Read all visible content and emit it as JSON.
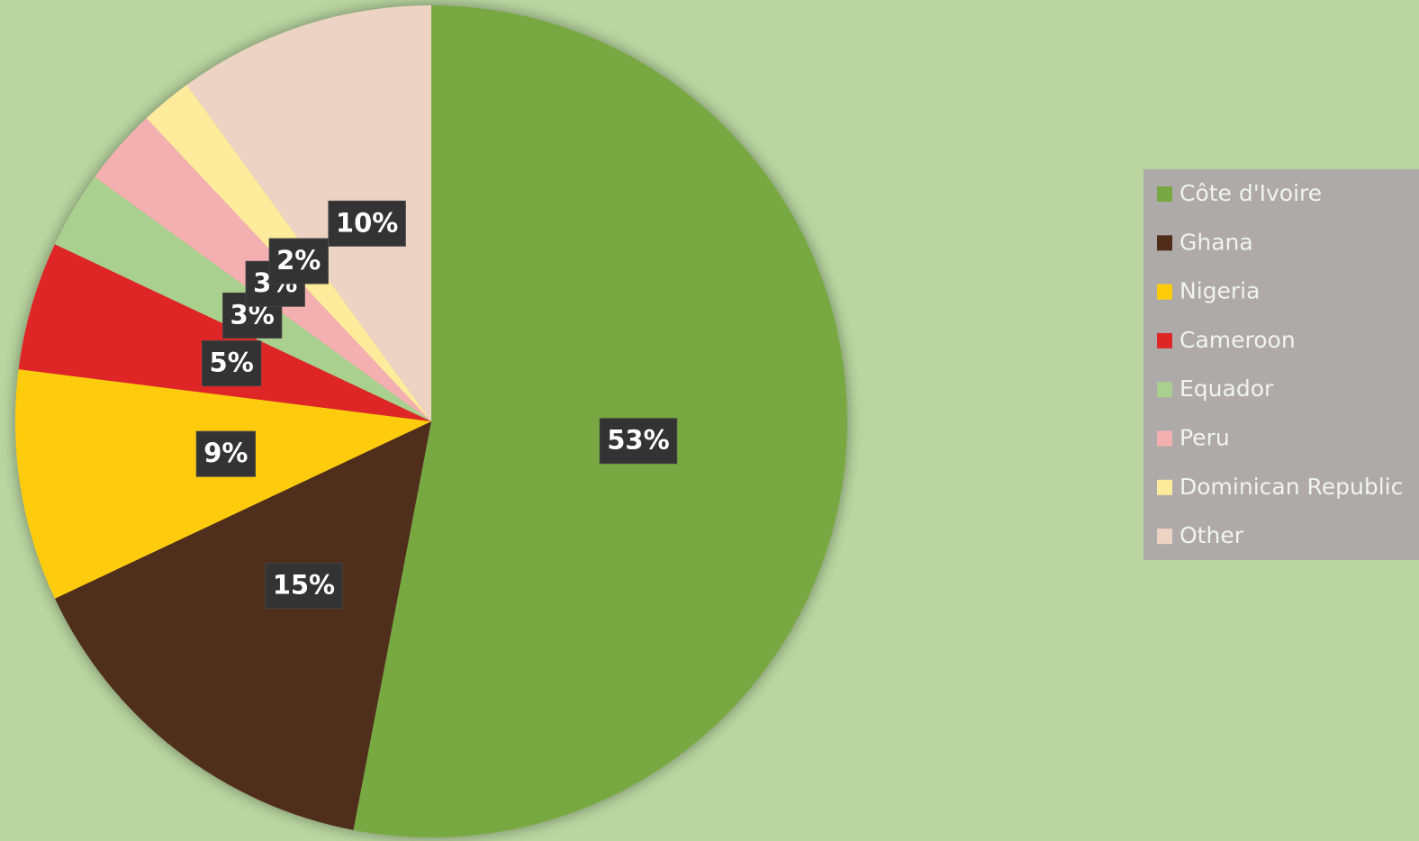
{
  "chart_data": {
    "type": "pie",
    "categories": [
      "Côte d'Ivoire",
      "Ghana",
      "Nigeria",
      "Cameroon",
      "Equador",
      "Peru",
      "Dominican Republic",
      "Other"
    ],
    "values": [
      53,
      15,
      9,
      5,
      3,
      3,
      2,
      10
    ],
    "value_labels": [
      "53%",
      "15%",
      "9%",
      "5%",
      "3%",
      "3%",
      "2%",
      "10%"
    ],
    "colors": [
      "#77a843",
      "#4f2d1a",
      "#ffcc0a",
      "#de2626",
      "#a9d08e",
      "#f4b0b0",
      "#ffeb9c",
      "#edd3c4"
    ],
    "legend": "right"
  }
}
